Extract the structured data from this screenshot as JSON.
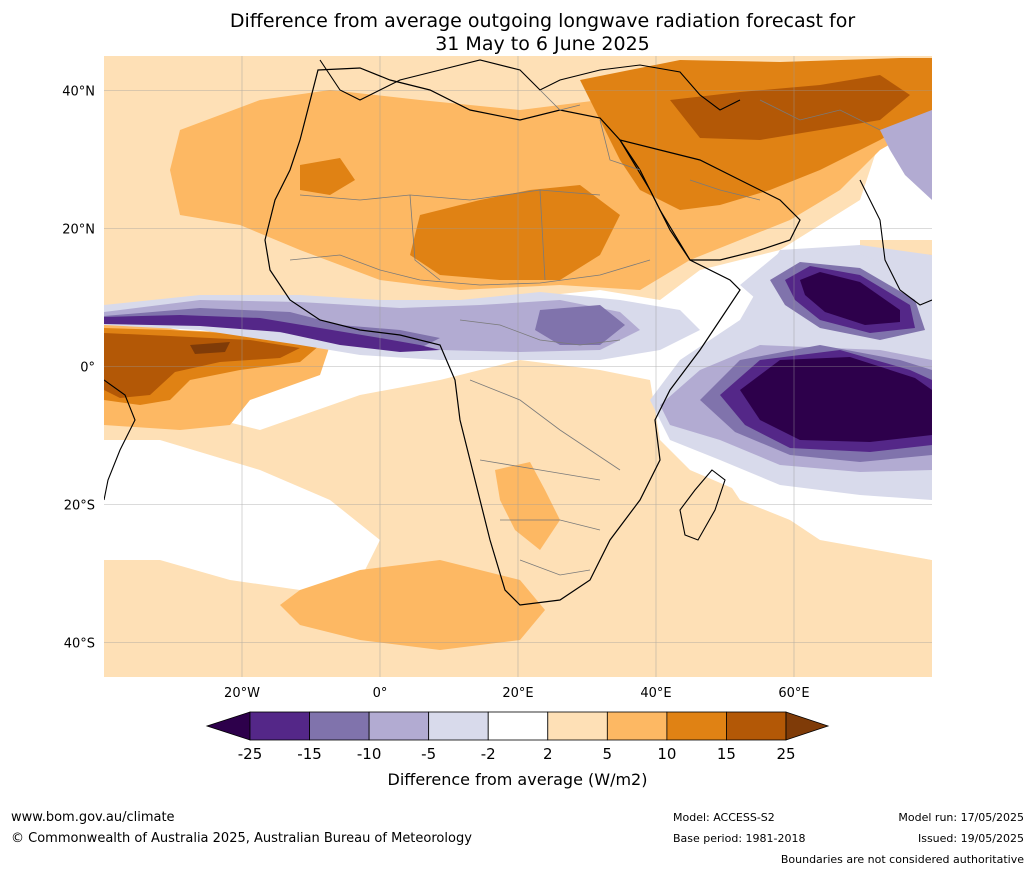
{
  "title": {
    "line1": "Difference from average outgoing longwave radiation forecast for",
    "line2": "31 May to 6 June 2025"
  },
  "map": {
    "lat_labels": [
      "40°N",
      "20°N",
      "0°",
      "20°S",
      "40°S"
    ],
    "lon_labels": [
      "20°W",
      "0°",
      "20°E",
      "40°E",
      "60°E"
    ],
    "lat_values": [
      40,
      20,
      0,
      -20,
      -40
    ],
    "lon_values": [
      -20,
      0,
      20,
      40,
      60
    ],
    "extent": {
      "lon_min": -40,
      "lon_max": 80,
      "lat_min": -45,
      "lat_max": 45
    }
  },
  "colorbar": {
    "ticks": [
      "-25",
      "-15",
      "-10",
      "-5",
      "-2",
      "2",
      "5",
      "10",
      "15",
      "25"
    ],
    "colors": [
      "#2d004b",
      "#542788",
      "#8073ac",
      "#b2abd2",
      "#d8daeb",
      "#ffffff",
      "#fee0b6",
      "#fdb863",
      "#e08214",
      "#b35806",
      "#7f3b08"
    ],
    "label": "Difference from average (W/m2)"
  },
  "footer": {
    "website": "www.bom.gov.au/climate",
    "copyright": "© Commonwealth of Australia 2025, Australian Bureau of Meteorology",
    "model": "Model: ACCESS-S2",
    "base_period": "Base period: 1981-2018",
    "model_run": "Model run: 17/05/2025",
    "issued": "Issued: 19/05/2025",
    "boundaries": "Boundaries are not considered authoritative"
  }
}
